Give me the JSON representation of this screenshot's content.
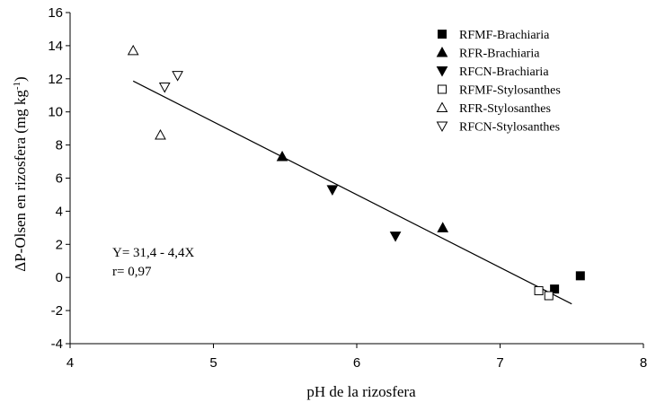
{
  "chart_data": {
    "type": "scatter",
    "xlabel": "pH de la rizosfera",
    "ylabel": "ΔP-Olsen en rizosfera  (mg kg-1)",
    "xlim": [
      4,
      8
    ],
    "ylim": [
      -4,
      16
    ],
    "xticks": [
      "4",
      "5",
      "6",
      "7",
      "8"
    ],
    "yticks": [
      "-4",
      "-2",
      "0",
      "2",
      "4",
      "6",
      "8",
      "10",
      "12",
      "14",
      "16"
    ],
    "grid": false,
    "legend_position": "top-right",
    "series": [
      {
        "name": "RFMF-Brachiaria",
        "marker": "square-filled",
        "points": [
          [
            7.38,
            -0.7
          ],
          [
            7.56,
            0.1
          ]
        ]
      },
      {
        "name": "RFR-Brachiaria",
        "marker": "triangle-up-filled",
        "points": [
          [
            5.48,
            7.3
          ],
          [
            6.6,
            3.0
          ]
        ]
      },
      {
        "name": "RFCN-Brachiaria",
        "marker": "triangle-down-filled",
        "points": [
          [
            5.83,
            5.3
          ],
          [
            6.27,
            2.5
          ]
        ]
      },
      {
        "name": "RFMF-Stylosanthes",
        "marker": "square-open",
        "points": [
          [
            7.27,
            -0.8
          ],
          [
            7.34,
            -1.1
          ]
        ]
      },
      {
        "name": "RFR-Stylosanthes",
        "marker": "triangle-up-open",
        "points": [
          [
            4.44,
            13.7
          ],
          [
            4.63,
            8.6
          ]
        ]
      },
      {
        "name": "RFCN-Stylosanthes",
        "marker": "triangle-down-open",
        "points": [
          [
            4.66,
            11.5
          ],
          [
            4.75,
            12.2
          ]
        ]
      }
    ],
    "trendline": {
      "intercept": 31.4,
      "slope": -4.4,
      "x_range": [
        4.44,
        7.5
      ]
    },
    "annotations": [
      "Y= 31,4 - 4,4X",
      "r= 0,97"
    ]
  }
}
